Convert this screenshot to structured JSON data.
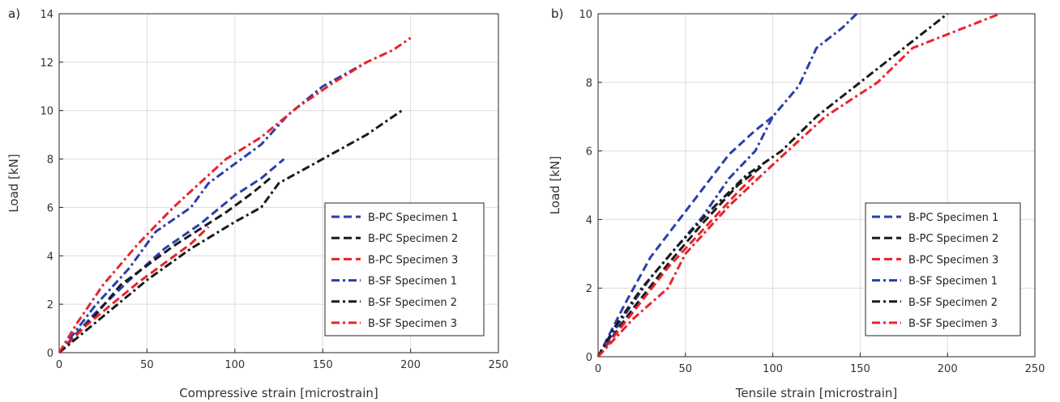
{
  "colors": {
    "blue": "#2B3FA8",
    "black": "#1A1A1A",
    "red": "#E8232B"
  },
  "chart_data": [
    {
      "type": "line",
      "panel_label": "a)",
      "title": "",
      "xlabel": "Compressive strain [microstrain]",
      "ylabel": "Load [kN]",
      "xlim": [
        0,
        250
      ],
      "ylim": [
        0,
        14
      ],
      "xticks": [
        "0",
        "50",
        "100",
        "150",
        "200",
        "250"
      ],
      "yticks": [
        "0",
        "2",
        "4",
        "6",
        "8",
        "10",
        "12",
        "14"
      ],
      "grid": true,
      "legend_position": "bottom-right",
      "series": [
        {
          "name": "B-PC Specimen 1",
          "color": "blue",
          "dash": "dashed",
          "x": [
            0,
            20,
            40,
            60,
            80,
            100,
            115,
            128
          ],
          "y": [
            0,
            1.6,
            3.0,
            4.3,
            5.3,
            6.5,
            7.2,
            8.0
          ]
        },
        {
          "name": "B-PC Specimen 2",
          "color": "black",
          "dash": "dashed",
          "x": [
            0,
            20,
            35,
            50,
            65,
            80,
            95,
            110,
            120
          ],
          "y": [
            0,
            1.5,
            2.8,
            3.6,
            4.4,
            5.1,
            5.8,
            6.6,
            7.2
          ]
        },
        {
          "name": "B-PC Specimen 3",
          "color": "red",
          "dash": "dashed",
          "x": [
            0,
            15,
            30,
            45,
            60,
            75,
            85
          ],
          "y": [
            0,
            1.1,
            2.0,
            2.9,
            3.7,
            4.5,
            5.2
          ]
        },
        {
          "name": "B-SF Specimen 1",
          "color": "blue",
          "dash": "dashdot",
          "x": [
            0,
            20,
            40,
            55,
            75,
            85,
            100,
            115,
            130,
            150,
            175
          ],
          "y": [
            0,
            1.9,
            3.5,
            5.0,
            6.0,
            7.0,
            7.8,
            8.6,
            9.8,
            11.0,
            12.0
          ]
        },
        {
          "name": "B-SF Specimen 2",
          "color": "black",
          "dash": "dashdot",
          "x": [
            0,
            25,
            50,
            75,
            100,
            115,
            125,
            150,
            175,
            195
          ],
          "y": [
            0,
            1.5,
            3.0,
            4.3,
            5.4,
            6.0,
            7.0,
            8.0,
            9.0,
            10.0
          ]
        },
        {
          "name": "B-SF Specimen 3",
          "color": "red",
          "dash": "dashdot",
          "x": [
            0,
            10,
            25,
            45,
            65,
            80,
            95,
            115,
            135,
            155,
            175,
            190,
            200
          ],
          "y": [
            0,
            1.2,
            2.8,
            4.5,
            6.0,
            7.0,
            8.0,
            8.9,
            10.1,
            11.1,
            12.0,
            12.5,
            13.0
          ]
        }
      ]
    },
    {
      "type": "line",
      "panel_label": "b)",
      "title": "",
      "xlabel": "Tensile strain [microstrain]",
      "ylabel": "Load [kN]",
      "xlim": [
        0,
        250
      ],
      "ylim": [
        0,
        10
      ],
      "xticks": [
        "0",
        "50",
        "100",
        "150",
        "200",
        "250"
      ],
      "yticks": [
        "0",
        "2",
        "4",
        "6",
        "8",
        "10"
      ],
      "grid": true,
      "legend_position": "bottom-right",
      "series": [
        {
          "name": "B-PC Specimen 1",
          "color": "blue",
          "dash": "dashed",
          "x": [
            0,
            15,
            30,
            45,
            60,
            75,
            90,
            100
          ],
          "y": [
            0,
            1.5,
            2.9,
            3.9,
            4.9,
            5.9,
            6.6,
            7.0
          ]
        },
        {
          "name": "B-PC Specimen 2",
          "color": "black",
          "dash": "dashed",
          "x": [
            0,
            20,
            40,
            60,
            80,
            95
          ],
          "y": [
            0,
            1.4,
            2.7,
            3.9,
            5.0,
            5.6
          ]
        },
        {
          "name": "B-PC Specimen 3",
          "color": "red",
          "dash": "dashed",
          "x": [
            0,
            20,
            40,
            60,
            80,
            90
          ],
          "y": [
            0,
            1.3,
            2.6,
            3.7,
            4.8,
            5.3
          ]
        },
        {
          "name": "B-SF Specimen 1",
          "color": "blue",
          "dash": "dashdot",
          "x": [
            0,
            15,
            30,
            45,
            60,
            75,
            90,
            100,
            115,
            125,
            140,
            148
          ],
          "y": [
            0,
            1.2,
            2.3,
            3.2,
            4.1,
            5.2,
            6.0,
            7.0,
            7.9,
            9.0,
            9.6,
            10.0
          ]
        },
        {
          "name": "B-SF Specimen 2",
          "color": "black",
          "dash": "dashdot",
          "x": [
            0,
            10,
            25,
            45,
            65,
            85,
            105,
            125,
            150,
            175,
            200
          ],
          "y": [
            0,
            0.9,
            2.0,
            3.2,
            4.3,
            5.3,
            6.0,
            7.0,
            8.0,
            9.0,
            10.0
          ]
        },
        {
          "name": "B-SF Specimen 3",
          "color": "red",
          "dash": "dashdot",
          "x": [
            0,
            20,
            40,
            50,
            75,
            100,
            115,
            130,
            160,
            180,
            205,
            230
          ],
          "y": [
            0,
            1.1,
            2.0,
            3.0,
            4.4,
            5.6,
            6.3,
            7.0,
            8.0,
            9.0,
            9.5,
            10.0
          ]
        }
      ]
    }
  ]
}
